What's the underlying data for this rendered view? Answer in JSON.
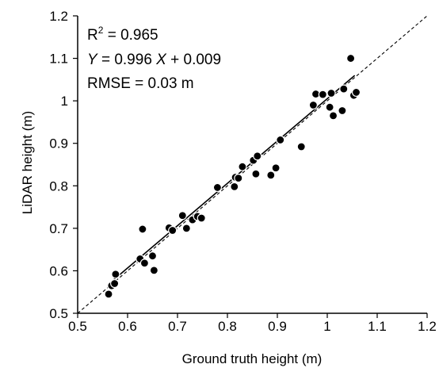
{
  "chart_data": {
    "type": "scatter",
    "title": "",
    "xlabel": "Ground truth height (m)",
    "ylabel": "LiDAR  height (m)",
    "xlim": [
      0.5,
      1.2
    ],
    "ylim": [
      0.5,
      1.2
    ],
    "xticks": [
      "0.5",
      "0.6",
      "0.7",
      "0.8",
      "0.9",
      "1",
      "1.1",
      "1.2"
    ],
    "yticks": [
      "0.5",
      "0.6",
      "0.7",
      "0.8",
      "0.9",
      "1",
      "1.1",
      "1.2"
    ],
    "grid": false,
    "legend": "none",
    "annotations": {
      "r2_base": "R",
      "r2_sup": "2",
      "r2_rest": " = 0.965",
      "eq_y": "Y",
      "eq_mid": " = 0.996 ",
      "eq_x": "X",
      "eq_end": " + 0.009",
      "rmse": "RMSE = 0.03 m"
    },
    "fit_line": {
      "slope": 0.996,
      "intercept": 0.009,
      "x_range": [
        0.56,
        1.055
      ]
    },
    "reference_line": {
      "slope": 1,
      "intercept": 0,
      "style": "dashed"
    },
    "points": [
      {
        "x": 0.562,
        "y": 0.545
      },
      {
        "x": 0.568,
        "y": 0.565
      },
      {
        "x": 0.574,
        "y": 0.57
      },
      {
        "x": 0.576,
        "y": 0.592
      },
      {
        "x": 0.625,
        "y": 0.628
      },
      {
        "x": 0.63,
        "y": 0.698
      },
      {
        "x": 0.634,
        "y": 0.618
      },
      {
        "x": 0.65,
        "y": 0.635
      },
      {
        "x": 0.653,
        "y": 0.601
      },
      {
        "x": 0.683,
        "y": 0.701
      },
      {
        "x": 0.69,
        "y": 0.695
      },
      {
        "x": 0.71,
        "y": 0.73
      },
      {
        "x": 0.718,
        "y": 0.7
      },
      {
        "x": 0.73,
        "y": 0.72
      },
      {
        "x": 0.74,
        "y": 0.728
      },
      {
        "x": 0.748,
        "y": 0.724
      },
      {
        "x": 0.78,
        "y": 0.796
      },
      {
        "x": 0.814,
        "y": 0.798
      },
      {
        "x": 0.816,
        "y": 0.82
      },
      {
        "x": 0.822,
        "y": 0.818
      },
      {
        "x": 0.83,
        "y": 0.845
      },
      {
        "x": 0.852,
        "y": 0.86
      },
      {
        "x": 0.857,
        "y": 0.828
      },
      {
        "x": 0.86,
        "y": 0.87
      },
      {
        "x": 0.887,
        "y": 0.825
      },
      {
        "x": 0.897,
        "y": 0.842
      },
      {
        "x": 0.906,
        "y": 0.908
      },
      {
        "x": 0.948,
        "y": 0.892
      },
      {
        "x": 0.972,
        "y": 0.99
      },
      {
        "x": 0.977,
        "y": 1.016
      },
      {
        "x": 0.991,
        "y": 1.015
      },
      {
        "x": 1.005,
        "y": 0.985
      },
      {
        "x": 1.008,
        "y": 1.018
      },
      {
        "x": 1.012,
        "y": 0.965
      },
      {
        "x": 1.03,
        "y": 0.977
      },
      {
        "x": 1.033,
        "y": 1.028
      },
      {
        "x": 1.047,
        "y": 1.1
      },
      {
        "x": 1.053,
        "y": 1.013
      },
      {
        "x": 1.058,
        "y": 1.02
      }
    ]
  }
}
